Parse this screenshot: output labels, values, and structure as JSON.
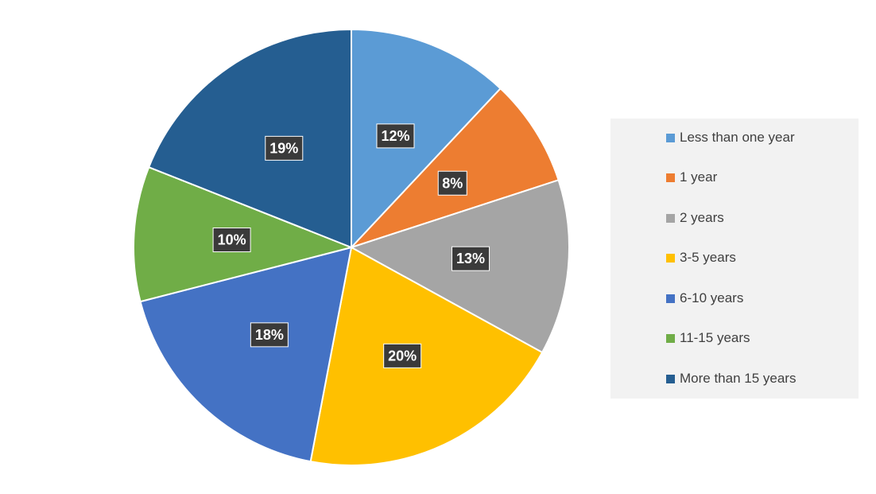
{
  "chart_data": {
    "type": "pie",
    "title": "",
    "categories": [
      "Less than one year",
      "1 year",
      "2 years",
      "3-5 years",
      "6-10 years",
      "11-15 years",
      "More than 15 years"
    ],
    "values": [
      12,
      8,
      13,
      20,
      18,
      10,
      19
    ],
    "data_labels": [
      "12%",
      "8%",
      "13%",
      "20%",
      "18%",
      "10%",
      "19%"
    ],
    "colors": [
      "#5b9bd5",
      "#ed7d31",
      "#a5a5a5",
      "#ffc000",
      "#4472c4",
      "#70ad47",
      "#255e91"
    ],
    "legend_position": "right",
    "start_angle_deg": 0,
    "direction": "clockwise"
  },
  "legend": {
    "items": [
      {
        "label": "Less than one year",
        "color": "#5b9bd5"
      },
      {
        "label": "1 year",
        "color": "#ed7d31"
      },
      {
        "label": "2 years",
        "color": "#a5a5a5"
      },
      {
        "label": "3-5 years",
        "color": "#ffc000"
      },
      {
        "label": "6-10 years",
        "color": "#4472c4"
      },
      {
        "label": "11-15 years",
        "color": "#70ad47"
      },
      {
        "label": "More than 15 years",
        "color": "#255e91"
      }
    ]
  }
}
